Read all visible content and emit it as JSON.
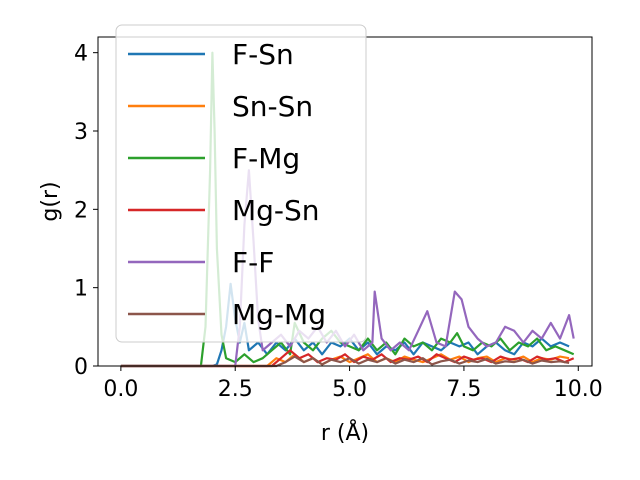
{
  "chart_data": {
    "type": "line",
    "xlabel": "r (Å)",
    "ylabel": "g(r)",
    "xlim": [
      -0.5,
      10.3
    ],
    "ylim": [
      0,
      4.2
    ],
    "xticks": [
      0.0,
      2.5,
      5.0,
      7.5,
      10.0
    ],
    "xtick_labels": [
      "0.0",
      "2.5",
      "5.0",
      "7.5",
      "10.0"
    ],
    "yticks": [
      0,
      1,
      2,
      3,
      4
    ],
    "ytick_labels": [
      "0",
      "1",
      "2",
      "3",
      "4"
    ],
    "grid": false,
    "legend_position": "upper-left",
    "series": [
      {
        "name": "F-Sn",
        "color": "#1f77b4",
        "points": [
          [
            0,
            0
          ],
          [
            1.9,
            0
          ],
          [
            2.0,
            0
          ],
          [
            2.1,
            0.02
          ],
          [
            2.2,
            0.2
          ],
          [
            2.3,
            0.5
          ],
          [
            2.4,
            1.05
          ],
          [
            2.5,
            0.6
          ],
          [
            2.6,
            0.3
          ],
          [
            2.7,
            0.55
          ],
          [
            2.8,
            0.2
          ],
          [
            3.0,
            0.3
          ],
          [
            3.2,
            0.15
          ],
          [
            3.4,
            0.3
          ],
          [
            3.6,
            0.2
          ],
          [
            3.8,
            0.35
          ],
          [
            4.0,
            0.2
          ],
          [
            4.2,
            0.3
          ],
          [
            4.4,
            0.15
          ],
          [
            4.6,
            0.3
          ],
          [
            4.8,
            0.25
          ],
          [
            5.0,
            0.35
          ],
          [
            5.2,
            0.2
          ],
          [
            5.4,
            0.3
          ],
          [
            5.6,
            0.15
          ],
          [
            5.8,
            0.25
          ],
          [
            6.0,
            0.2
          ],
          [
            6.2,
            0.3
          ],
          [
            6.4,
            0.15
          ],
          [
            6.6,
            0.3
          ],
          [
            6.8,
            0.25
          ],
          [
            7.0,
            0.2
          ],
          [
            7.2,
            0.3
          ],
          [
            7.4,
            0.25
          ],
          [
            7.6,
            0.3
          ],
          [
            7.8,
            0.15
          ],
          [
            8.0,
            0.25
          ],
          [
            8.2,
            0.3
          ],
          [
            8.4,
            0.2
          ],
          [
            8.6,
            0.15
          ],
          [
            8.8,
            0.3
          ],
          [
            9.0,
            0.25
          ],
          [
            9.2,
            0.35
          ],
          [
            9.4,
            0.25
          ],
          [
            9.6,
            0.3
          ],
          [
            9.8,
            0.25
          ]
        ]
      },
      {
        "name": "Sn-Sn",
        "color": "#ff7f0e",
        "points": [
          [
            0,
            0
          ],
          [
            3.2,
            0
          ],
          [
            3.4,
            0.1
          ],
          [
            3.6,
            0.05
          ],
          [
            3.8,
            0.15
          ],
          [
            4.0,
            0.05
          ],
          [
            4.2,
            0.1
          ],
          [
            4.4,
            0.02
          ],
          [
            4.6,
            0.08
          ],
          [
            4.8,
            0.12
          ],
          [
            5.0,
            0.05
          ],
          [
            5.2,
            0.1
          ],
          [
            5.4,
            0.15
          ],
          [
            5.6,
            0.05
          ],
          [
            5.8,
            0.1
          ],
          [
            6.0,
            0.05
          ],
          [
            6.2,
            0.12
          ],
          [
            6.4,
            0.08
          ],
          [
            6.6,
            0.05
          ],
          [
            6.8,
            0.1
          ],
          [
            7.0,
            0.15
          ],
          [
            7.2,
            0.08
          ],
          [
            7.4,
            0.12
          ],
          [
            7.6,
            0.05
          ],
          [
            7.8,
            0.1
          ],
          [
            8.0,
            0.12
          ],
          [
            8.2,
            0.05
          ],
          [
            8.4,
            0.1
          ],
          [
            8.6,
            0.08
          ],
          [
            8.8,
            0.12
          ],
          [
            9.0,
            0.05
          ],
          [
            9.2,
            0.1
          ],
          [
            9.4,
            0.08
          ],
          [
            9.6,
            0.12
          ],
          [
            9.8,
            0.1
          ]
        ]
      },
      {
        "name": "F-Mg",
        "color": "#2ca02c",
        "points": [
          [
            0,
            0
          ],
          [
            1.75,
            0
          ],
          [
            1.85,
            0.5
          ],
          [
            1.95,
            2.5
          ],
          [
            2.0,
            4.0
          ],
          [
            2.05,
            3.0
          ],
          [
            2.1,
            1.5
          ],
          [
            2.2,
            0.4
          ],
          [
            2.3,
            0.1
          ],
          [
            2.5,
            0.05
          ],
          [
            2.7,
            0.15
          ],
          [
            2.9,
            0.05
          ],
          [
            3.1,
            0.1
          ],
          [
            3.3,
            0.2
          ],
          [
            3.5,
            0.3
          ],
          [
            3.7,
            0.15
          ],
          [
            3.8,
            0.55
          ],
          [
            4.0,
            0.3
          ],
          [
            4.2,
            0.2
          ],
          [
            4.4,
            0.35
          ],
          [
            4.6,
            0.45
          ],
          [
            4.8,
            0.3
          ],
          [
            5.0,
            0.25
          ],
          [
            5.2,
            0.2
          ],
          [
            5.4,
            0.35
          ],
          [
            5.6,
            0.2
          ],
          [
            5.8,
            0.3
          ],
          [
            6.0,
            0.15
          ],
          [
            6.2,
            0.35
          ],
          [
            6.4,
            0.25
          ],
          [
            6.6,
            0.3
          ],
          [
            6.8,
            0.2
          ],
          [
            7.0,
            0.35
          ],
          [
            7.2,
            0.3
          ],
          [
            7.35,
            0.42
          ],
          [
            7.5,
            0.25
          ],
          [
            7.7,
            0.2
          ],
          [
            7.9,
            0.3
          ],
          [
            8.1,
            0.25
          ],
          [
            8.3,
            0.35
          ],
          [
            8.5,
            0.2
          ],
          [
            8.7,
            0.3
          ],
          [
            8.9,
            0.25
          ],
          [
            9.1,
            0.35
          ],
          [
            9.3,
            0.2
          ],
          [
            9.5,
            0.25
          ],
          [
            9.7,
            0.2
          ],
          [
            9.9,
            0.15
          ]
        ]
      },
      {
        "name": "Mg-Sn",
        "color": "#d62728",
        "points": [
          [
            0,
            0
          ],
          [
            3.3,
            0
          ],
          [
            3.5,
            0.1
          ],
          [
            3.7,
            0.2
          ],
          [
            3.9,
            0.1
          ],
          [
            4.1,
            0.15
          ],
          [
            4.3,
            0.05
          ],
          [
            4.5,
            0.1
          ],
          [
            4.7,
            0.08
          ],
          [
            4.9,
            0.15
          ],
          [
            5.1,
            0.05
          ],
          [
            5.3,
            0.12
          ],
          [
            5.5,
            0.08
          ],
          [
            5.7,
            0.15
          ],
          [
            5.9,
            0.05
          ],
          [
            6.1,
            0.1
          ],
          [
            6.3,
            0.08
          ],
          [
            6.5,
            0.12
          ],
          [
            6.7,
            0.05
          ],
          [
            6.9,
            0.15
          ],
          [
            7.1,
            0.1
          ],
          [
            7.3,
            0.05
          ],
          [
            7.5,
            0.12
          ],
          [
            7.7,
            0.08
          ],
          [
            7.9,
            0.1
          ],
          [
            8.1,
            0.05
          ],
          [
            8.3,
            0.12
          ],
          [
            8.5,
            0.08
          ],
          [
            8.7,
            0.1
          ],
          [
            8.9,
            0.05
          ],
          [
            9.1,
            0.12
          ],
          [
            9.3,
            0.08
          ],
          [
            9.5,
            0.1
          ],
          [
            9.7,
            0.05
          ],
          [
            9.9,
            0.1
          ]
        ]
      },
      {
        "name": "F-F",
        "color": "#9467bd",
        "points": [
          [
            0,
            0
          ],
          [
            2.5,
            0
          ],
          [
            2.6,
            0.5
          ],
          [
            2.7,
            1.8
          ],
          [
            2.8,
            2.5
          ],
          [
            2.9,
            1.6
          ],
          [
            3.0,
            0.6
          ],
          [
            3.1,
            0.2
          ],
          [
            3.3,
            0.3
          ],
          [
            3.5,
            0.4
          ],
          [
            3.7,
            0.25
          ],
          [
            3.9,
            0.45
          ],
          [
            4.1,
            0.35
          ],
          [
            4.3,
            0.5
          ],
          [
            4.5,
            0.3
          ],
          [
            4.7,
            0.45
          ],
          [
            4.9,
            0.25
          ],
          [
            5.1,
            0.4
          ],
          [
            5.3,
            0.2
          ],
          [
            5.5,
            0.3
          ],
          [
            5.55,
            0.95
          ],
          [
            5.7,
            0.35
          ],
          [
            5.9,
            0.2
          ],
          [
            6.1,
            0.3
          ],
          [
            6.3,
            0.2
          ],
          [
            6.5,
            0.45
          ],
          [
            6.7,
            0.7
          ],
          [
            6.9,
            0.3
          ],
          [
            7.1,
            0.25
          ],
          [
            7.3,
            0.95
          ],
          [
            7.45,
            0.85
          ],
          [
            7.6,
            0.5
          ],
          [
            7.8,
            0.35
          ],
          [
            8.0,
            0.25
          ],
          [
            8.2,
            0.3
          ],
          [
            8.4,
            0.5
          ],
          [
            8.6,
            0.45
          ],
          [
            8.8,
            0.3
          ],
          [
            9.0,
            0.45
          ],
          [
            9.2,
            0.35
          ],
          [
            9.4,
            0.55
          ],
          [
            9.6,
            0.35
          ],
          [
            9.8,
            0.65
          ],
          [
            9.9,
            0.35
          ]
        ]
      },
      {
        "name": "Mg-Mg",
        "color": "#8c564b",
        "points": [
          [
            0,
            0
          ],
          [
            3.4,
            0
          ],
          [
            3.6,
            0.05
          ],
          [
            3.8,
            0.12
          ],
          [
            4.0,
            0.05
          ],
          [
            4.2,
            0.1
          ],
          [
            4.4,
            0.02
          ],
          [
            4.6,
            0.08
          ],
          [
            4.8,
            0.05
          ],
          [
            5.0,
            0.1
          ],
          [
            5.2,
            0.03
          ],
          [
            5.4,
            0.08
          ],
          [
            5.6,
            0.05
          ],
          [
            5.8,
            0.1
          ],
          [
            6.0,
            0.03
          ],
          [
            6.2,
            0.08
          ],
          [
            6.4,
            0.05
          ],
          [
            6.6,
            0.1
          ],
          [
            6.8,
            0.02
          ],
          [
            7.0,
            0.06
          ],
          [
            7.2,
            0.08
          ],
          [
            7.4,
            0.03
          ],
          [
            7.6,
            0.07
          ],
          [
            7.8,
            0.05
          ],
          [
            8.0,
            0.09
          ],
          [
            8.2,
            0.03
          ],
          [
            8.4,
            0.06
          ],
          [
            8.6,
            0.05
          ],
          [
            8.8,
            0.08
          ],
          [
            9.0,
            0.03
          ],
          [
            9.2,
            0.07
          ],
          [
            9.4,
            0.05
          ],
          [
            9.6,
            0.06
          ],
          [
            9.8,
            0.04
          ]
        ]
      }
    ]
  }
}
